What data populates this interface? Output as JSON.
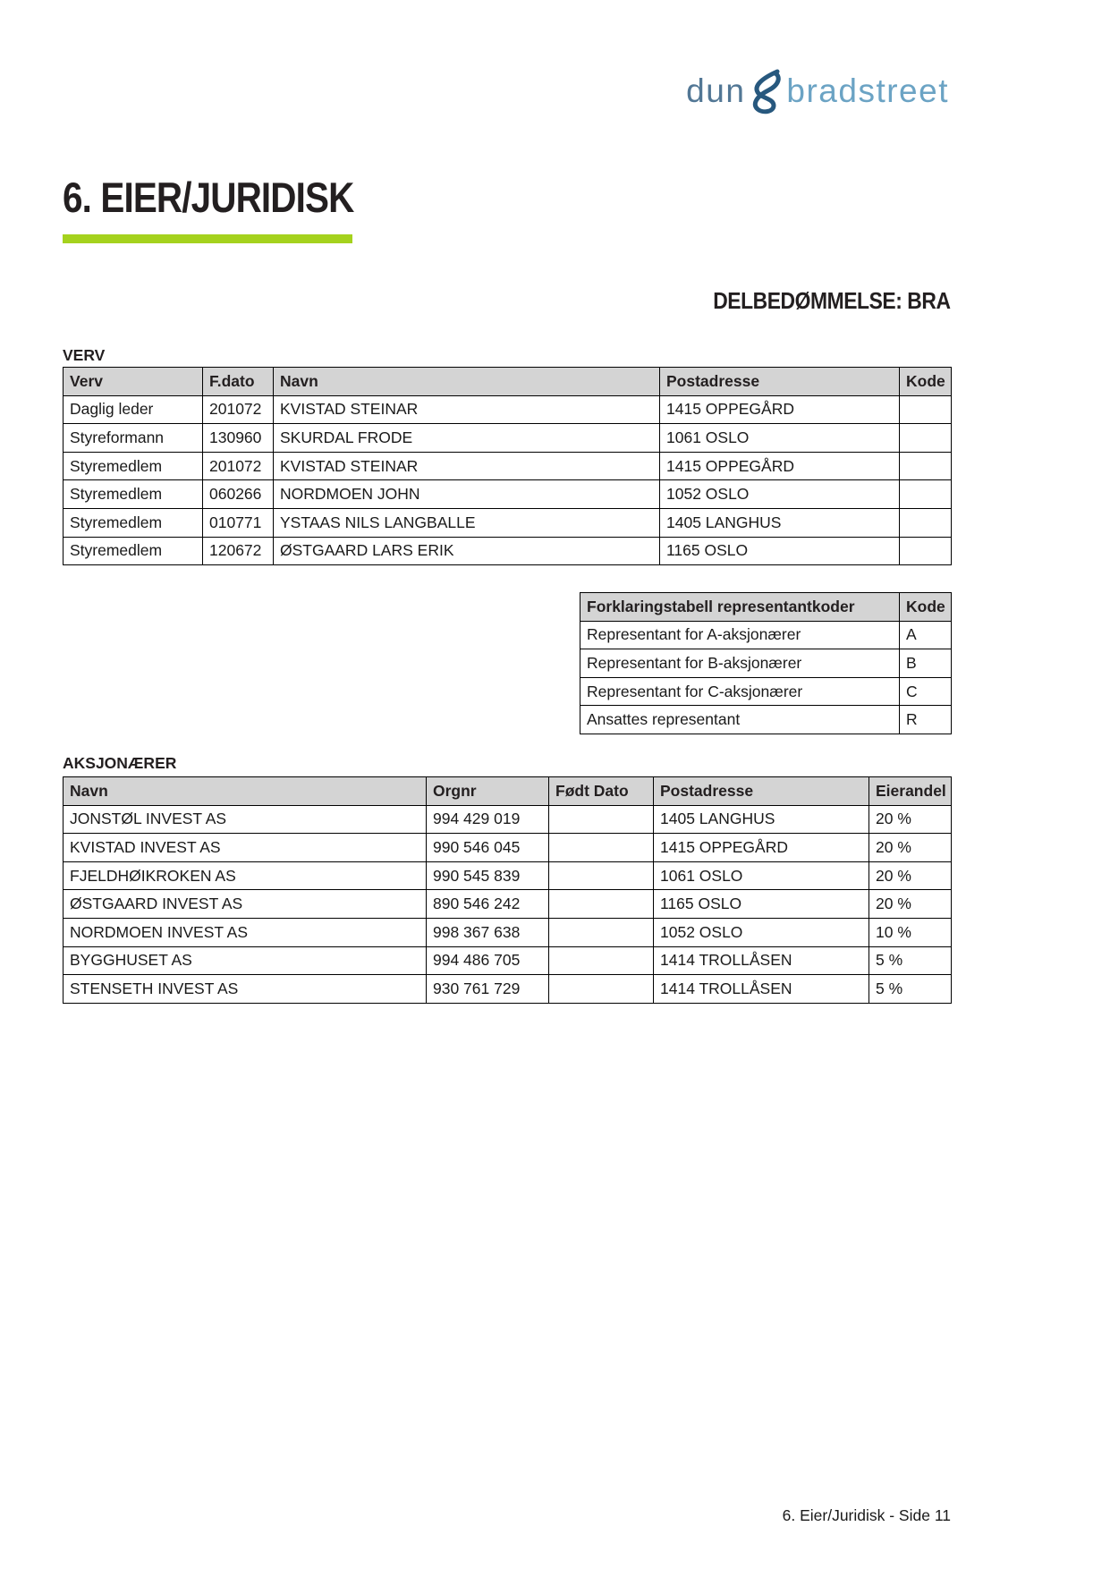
{
  "logo": {
    "dun": "dun",
    "ampersand": "&",
    "bradstreet": "bradstreet"
  },
  "heading": "6. EIER/JURIDISK",
  "assessment": "DELBEDØMMELSE: BRA",
  "verv_section": {
    "label": "VERV",
    "table": {
      "headers": [
        "Verv",
        "F.dato",
        "Navn",
        "Postadresse",
        "Kode"
      ],
      "rows": [
        [
          "Daglig leder",
          "201072",
          "KVISTAD STEINAR",
          "1415 OPPEGÅRD",
          ""
        ],
        [
          "Styreformann",
          "130960",
          "SKURDAL FRODE",
          "1061 OSLO",
          ""
        ],
        [
          "Styremedlem",
          "201072",
          "KVISTAD STEINAR",
          "1415 OPPEGÅRD",
          ""
        ],
        [
          "Styremedlem",
          "060266",
          "NORDMOEN JOHN",
          "1052 OSLO",
          ""
        ],
        [
          "Styremedlem",
          "010771",
          "YSTAAS NILS LANGBALLE",
          "1405 LANGHUS",
          ""
        ],
        [
          "Styremedlem",
          "120672",
          "ØSTGAARD LARS ERIK",
          "1165 OSLO",
          ""
        ]
      ]
    }
  },
  "codes_section": {
    "table": {
      "headers": [
        "Forklaringstabell representantkoder",
        "Kode"
      ],
      "rows": [
        [
          "Representant for A-aksjonærer",
          "A"
        ],
        [
          "Representant for B-aksjonærer",
          "B"
        ],
        [
          "Representant for C-aksjonærer",
          "C"
        ],
        [
          "Ansattes representant",
          "R"
        ]
      ]
    }
  },
  "shareholders_section": {
    "label": "AKSJONÆRER",
    "table": {
      "headers": [
        "Navn",
        "Orgnr",
        "Født Dato",
        "Postadresse",
        "Eierandel"
      ],
      "rows": [
        [
          "JONSTØL INVEST AS",
          "994 429 019",
          "",
          "1405 LANGHUS",
          "20 %"
        ],
        [
          "KVISTAD INVEST AS",
          "990 546 045",
          "",
          "1415 OPPEGÅRD",
          "20 %"
        ],
        [
          "FJELDHØIKROKEN AS",
          "990 545 839",
          "",
          "1061 OSLO",
          "20 %"
        ],
        [
          "ØSTGAARD INVEST AS",
          "890 546 242",
          "",
          "1165 OSLO",
          "20 %"
        ],
        [
          "NORDMOEN INVEST AS",
          "998 367 638",
          "",
          "1052 OSLO",
          "10 %"
        ],
        [
          "BYGGHUSET AS",
          "994 486 705",
          "",
          "1414 TROLLÅSEN",
          "5 %"
        ],
        [
          "STENSETH INVEST AS",
          "930 761 729",
          "",
          "1414 TROLLÅSEN",
          "5 %"
        ]
      ]
    }
  },
  "footer": "6. Eier/Juridisk - Side 11",
  "colors": {
    "accent_green": "#a5d21d",
    "logo_dun": "#527795",
    "logo_ampersand": "#27587e",
    "logo_bradstreet": "#6ba3c4",
    "table_header_bg": "#d4d4d4",
    "border_black": "#000000"
  }
}
